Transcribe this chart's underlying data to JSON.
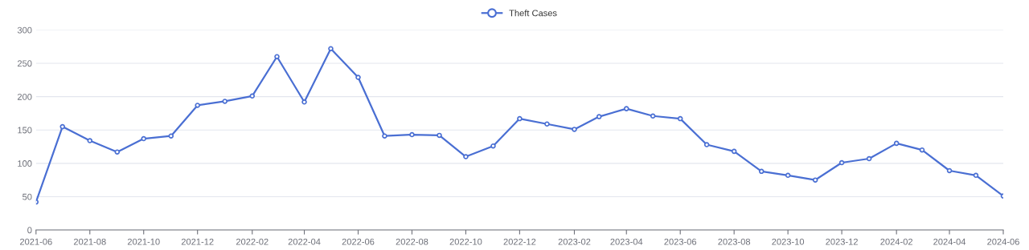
{
  "chart_data": {
    "type": "line",
    "x": [
      "2021-06",
      "2021-07",
      "2021-08",
      "2021-09",
      "2021-10",
      "2021-11",
      "2021-12",
      "2022-01",
      "2022-02",
      "2022-03",
      "2022-04",
      "2022-05",
      "2022-06",
      "2022-07",
      "2022-08",
      "2022-09",
      "2022-10",
      "2022-11",
      "2022-12",
      "2023-01",
      "2023-02",
      "2023-03",
      "2023-04",
      "2023-05",
      "2023-06",
      "2023-07",
      "2023-08",
      "2023-09",
      "2023-10",
      "2023-11",
      "2023-12",
      "2024-01",
      "2024-02",
      "2024-03",
      "2024-04",
      "2024-05",
      "2024-06"
    ],
    "series": [
      {
        "name": "Theft Cases",
        "color": "#4a6fd3",
        "values": [
          42,
          155,
          134,
          117,
          137,
          141,
          187,
          193,
          201,
          260,
          192,
          272,
          229,
          141,
          143,
          142,
          110,
          126,
          167,
          159,
          151,
          170,
          182,
          171,
          167,
          128,
          118,
          88,
          82,
          75,
          101,
          107,
          130,
          120,
          89,
          82,
          51
        ]
      }
    ],
    "xlim": [
      "2021-06",
      "2024-06"
    ],
    "xticks": [
      "2021-06",
      "2021-08",
      "2021-10",
      "2021-12",
      "2022-02",
      "2022-04",
      "2022-06",
      "2022-08",
      "2022-10",
      "2022-12",
      "2023-02",
      "2023-04",
      "2023-06",
      "2023-08",
      "2023-10",
      "2023-12",
      "2024-02",
      "2024-04",
      "2024-06"
    ],
    "ylim": [
      0,
      300
    ],
    "yticks": [
      0,
      50,
      100,
      150,
      200,
      250,
      300
    ],
    "grid": "y",
    "legend": "top",
    "marker": "circle",
    "line_style": "solid"
  }
}
